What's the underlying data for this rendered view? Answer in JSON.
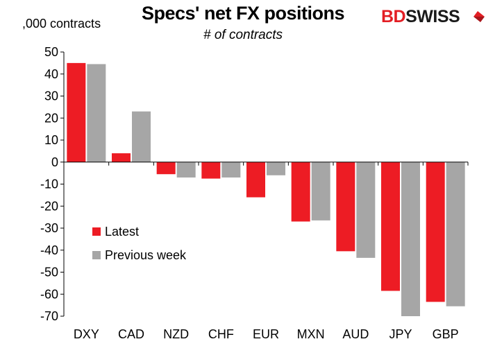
{
  "brand": {
    "part1": "BD",
    "part2": "SWISS",
    "accent": "#e31e24"
  },
  "chart_data": {
    "type": "bar",
    "title": "Specs' net FX positions",
    "subtitle": "# of contracts",
    "unit_label": ",000 contracts",
    "categories": [
      "DXY",
      "CAD",
      "NZD",
      "CHF",
      "EUR",
      "MXN",
      "AUD",
      "JPY",
      "GBP"
    ],
    "series": [
      {
        "name": "Latest",
        "color": "#ed1c24",
        "values": [
          45,
          4,
          -5.5,
          -7.5,
          -16,
          -27,
          -40.5,
          -58.5,
          -63.5
        ]
      },
      {
        "name": "Previous week",
        "color": "#a6a6a6",
        "values": [
          44.5,
          23,
          -7,
          -7,
          -6,
          -26.5,
          -43.5,
          -70,
          -65.5
        ]
      }
    ],
    "yticks": [
      50,
      40,
      30,
      20,
      10,
      0,
      -10,
      -20,
      -30,
      -40,
      -50,
      -60,
      -70
    ],
    "ylim": [
      -70,
      50
    ],
    "grid": false,
    "legend_position": "left-inside"
  }
}
